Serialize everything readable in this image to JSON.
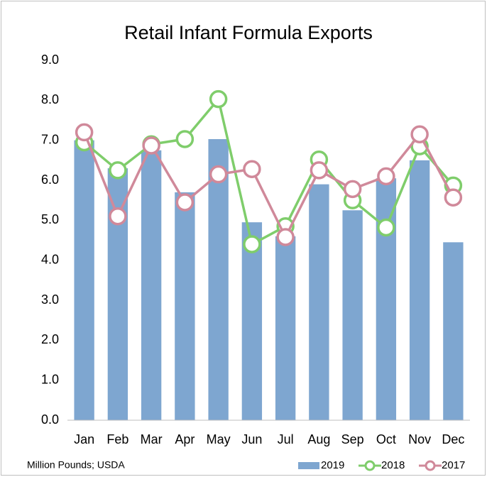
{
  "chart_data": {
    "type": "bar_line",
    "title": "Retail Infant Formula Exports",
    "annotation": "Million Pounds; USDA",
    "categories": [
      "Jan",
      "Feb",
      "Mar",
      "Apr",
      "May",
      "Jun",
      "Jul",
      "Aug",
      "Sep",
      "Oct",
      "Nov",
      "Dec"
    ],
    "series": [
      {
        "name": "2019",
        "type": "bar",
        "color": "#7ea6d0",
        "values": [
          7.0,
          6.3,
          6.75,
          5.7,
          7.03,
          4.95,
          4.6,
          5.9,
          5.25,
          6.05,
          6.5,
          4.45
        ]
      },
      {
        "name": "2018",
        "type": "line",
        "color": "#7fcd6b",
        "values": [
          6.95,
          6.25,
          6.9,
          7.03,
          8.03,
          4.4,
          4.85,
          6.52,
          5.5,
          4.82,
          6.85,
          5.87
        ]
      },
      {
        "name": "2017",
        "type": "line",
        "color": "#d0899a",
        "values": [
          7.2,
          5.1,
          6.87,
          5.45,
          6.15,
          6.28,
          4.58,
          6.25,
          5.78,
          6.1,
          7.15,
          5.57
        ]
      }
    ],
    "ylim": [
      0,
      9
    ],
    "yticks": [
      {
        "value": 0,
        "label": "0.0"
      },
      {
        "value": 1,
        "label": "1.0"
      },
      {
        "value": 2,
        "label": "2.0"
      },
      {
        "value": 3,
        "label": "3.0"
      },
      {
        "value": 4,
        "label": "4.0"
      },
      {
        "value": 5,
        "label": "5.0"
      },
      {
        "value": 6,
        "label": "6.0"
      },
      {
        "value": 7,
        "label": "7.0"
      },
      {
        "value": 8,
        "label": "8.0"
      },
      {
        "value": 9,
        "label": "9.0"
      }
    ],
    "legend": "bottom-right",
    "grid": false
  }
}
